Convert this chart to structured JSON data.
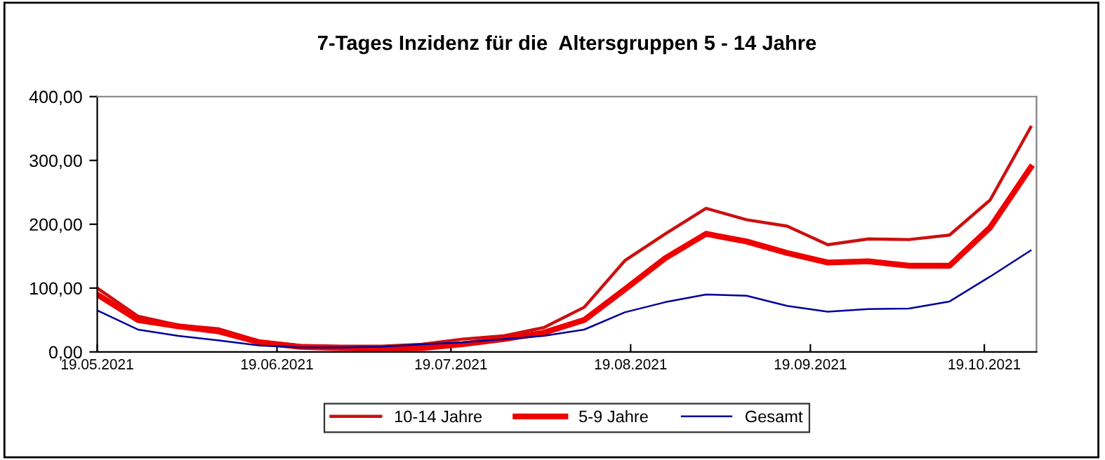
{
  "chart_data": {
    "type": "line",
    "title": "7-Tages Inzidenz für die  Altersgruppen 5 - 14 Jahre",
    "x": [
      "2021-05-19",
      "2021-05-26",
      "2021-06-02",
      "2021-06-09",
      "2021-06-16",
      "2021-06-23",
      "2021-06-30",
      "2021-07-07",
      "2021-07-14",
      "2021-07-21",
      "2021-07-28",
      "2021-08-04",
      "2021-08-11",
      "2021-08-18",
      "2021-08-25",
      "2021-09-01",
      "2021-09-08",
      "2021-09-15",
      "2021-09-22",
      "2021-09-29",
      "2021-10-06",
      "2021-10-13",
      "2021-10-20",
      "2021-10-27"
    ],
    "series": [
      {
        "name": "10-14 Jahre",
        "color": "#cc1010",
        "values": [
          100,
          56,
          42,
          36,
          17,
          10,
          9,
          9,
          12,
          20,
          25,
          38,
          70,
          143,
          185,
          225,
          207,
          197,
          168,
          177,
          176,
          183,
          238,
          352
        ]
      },
      {
        "name": "5-9 Jahre",
        "color": "#ee0000",
        "values": [
          90,
          50,
          40,
          32,
          15,
          8,
          6,
          5,
          6,
          12,
          20,
          30,
          50,
          98,
          147,
          185,
          173,
          155,
          140,
          142,
          135,
          135,
          195,
          289
        ]
      },
      {
        "name": "Gesamt",
        "color": "#000099",
        "values": [
          65,
          35,
          25,
          18,
          10,
          7,
          7,
          8,
          12,
          15,
          20,
          25,
          35,
          62,
          78,
          90,
          88,
          72,
          63,
          67,
          68,
          79,
          118,
          159
        ]
      }
    ],
    "xlim": [
      "2021-05-19",
      "2021-10-28"
    ],
    "xticks": [
      {
        "value": "2021-05-19",
        "label": "19.05.2021"
      },
      {
        "value": "2021-06-19",
        "label": "19.06.2021"
      },
      {
        "value": "2021-07-19",
        "label": "19.07.2021"
      },
      {
        "value": "2021-08-19",
        "label": "19.08.2021"
      },
      {
        "value": "2021-09-19",
        "label": "19.09.2021"
      },
      {
        "value": "2021-10-19",
        "label": "19.10.2021"
      }
    ],
    "ylim": [
      0,
      400
    ],
    "yticks": [
      {
        "value": 0,
        "label": "0,00"
      },
      {
        "value": 100,
        "label": "100,00"
      },
      {
        "value": 200,
        "label": "200,00"
      },
      {
        "value": 300,
        "label": "300,00"
      },
      {
        "value": 400,
        "label": "400,00"
      }
    ],
    "grid": false,
    "legend": "bottom",
    "marker": "none",
    "line_style": "solid"
  }
}
